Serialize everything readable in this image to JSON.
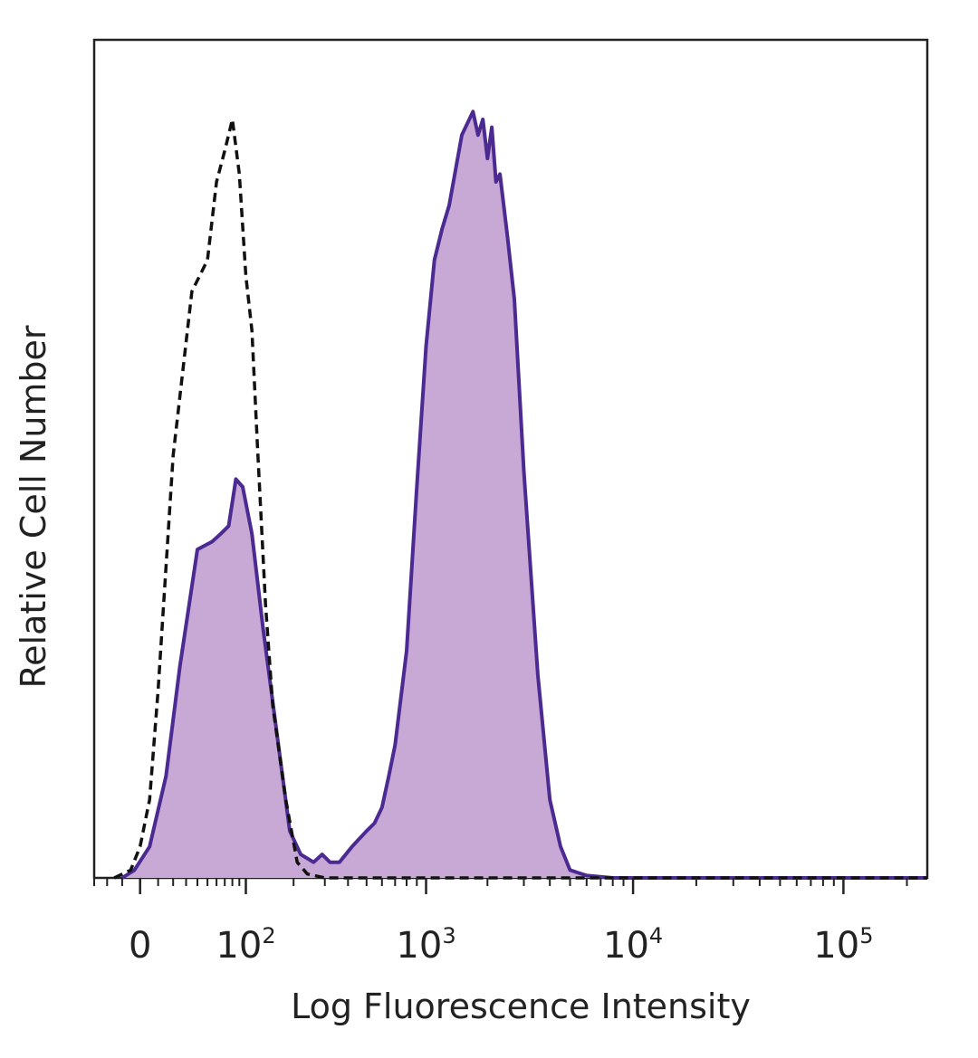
{
  "chart_data": {
    "type": "area",
    "title": "",
    "xlabel": "Log Fluorescence Intensity",
    "ylabel": "Relative Cell Number",
    "x_scale": "biexponential",
    "xlim": [
      -30,
      250000
    ],
    "ylim": [
      0,
      1
    ],
    "grid": false,
    "legend": "none",
    "x_ticks": [
      {
        "value": 0,
        "base": "0",
        "exp": ""
      },
      {
        "value": 100,
        "base": "10",
        "exp": "2"
      },
      {
        "value": 1000,
        "base": "10",
        "exp": "3"
      },
      {
        "value": 10000,
        "base": "10",
        "exp": "4"
      },
      {
        "value": 100000,
        "base": "10",
        "exp": "5"
      }
    ],
    "series": [
      {
        "style": "filled-solid",
        "color": "#4b2a91",
        "fill": "#c8a8d4",
        "x": [
          -10,
          -3,
          5,
          15,
          25,
          40,
          55,
          65,
          75,
          85,
          95,
          110,
          130,
          160,
          190,
          220,
          260,
          290,
          320,
          360,
          420,
          500,
          550,
          600,
          650,
          700,
          800,
          900,
          1000,
          1100,
          1200,
          1300,
          1500,
          1700,
          1800,
          1900,
          2000,
          2100,
          2200,
          2300,
          2500,
          2700,
          3000,
          3500,
          4000,
          4500,
          5000,
          6000,
          8000,
          15000,
          50000,
          250000
        ],
        "y": [
          0.0,
          0.01,
          0.04,
          0.13,
          0.27,
          0.42,
          0.43,
          0.44,
          0.45,
          0.51,
          0.5,
          0.44,
          0.32,
          0.18,
          0.06,
          0.03,
          0.02,
          0.03,
          0.02,
          0.02,
          0.04,
          0.06,
          0.07,
          0.09,
          0.13,
          0.17,
          0.29,
          0.5,
          0.68,
          0.79,
          0.83,
          0.86,
          0.95,
          0.98,
          0.95,
          0.97,
          0.92,
          0.96,
          0.89,
          0.9,
          0.82,
          0.74,
          0.52,
          0.26,
          0.1,
          0.04,
          0.01,
          0.003,
          0.0,
          0.0,
          0.0,
          0.0
        ]
      },
      {
        "style": "dashed-outline",
        "color": "#111111",
        "x": [
          -15,
          -5,
          0,
          5,
          10,
          20,
          35,
          50,
          60,
          70,
          80,
          90,
          100,
          110,
          120,
          135,
          150,
          180,
          210,
          240,
          300,
          500,
          1000,
          10000,
          250000
        ],
        "y": [
          0.0,
          0.01,
          0.04,
          0.1,
          0.24,
          0.54,
          0.75,
          0.79,
          0.89,
          0.93,
          0.97,
          0.9,
          0.77,
          0.7,
          0.55,
          0.35,
          0.22,
          0.1,
          0.02,
          0.005,
          0.0,
          0.0,
          0.0,
          0.0,
          0.0
        ]
      }
    ]
  }
}
